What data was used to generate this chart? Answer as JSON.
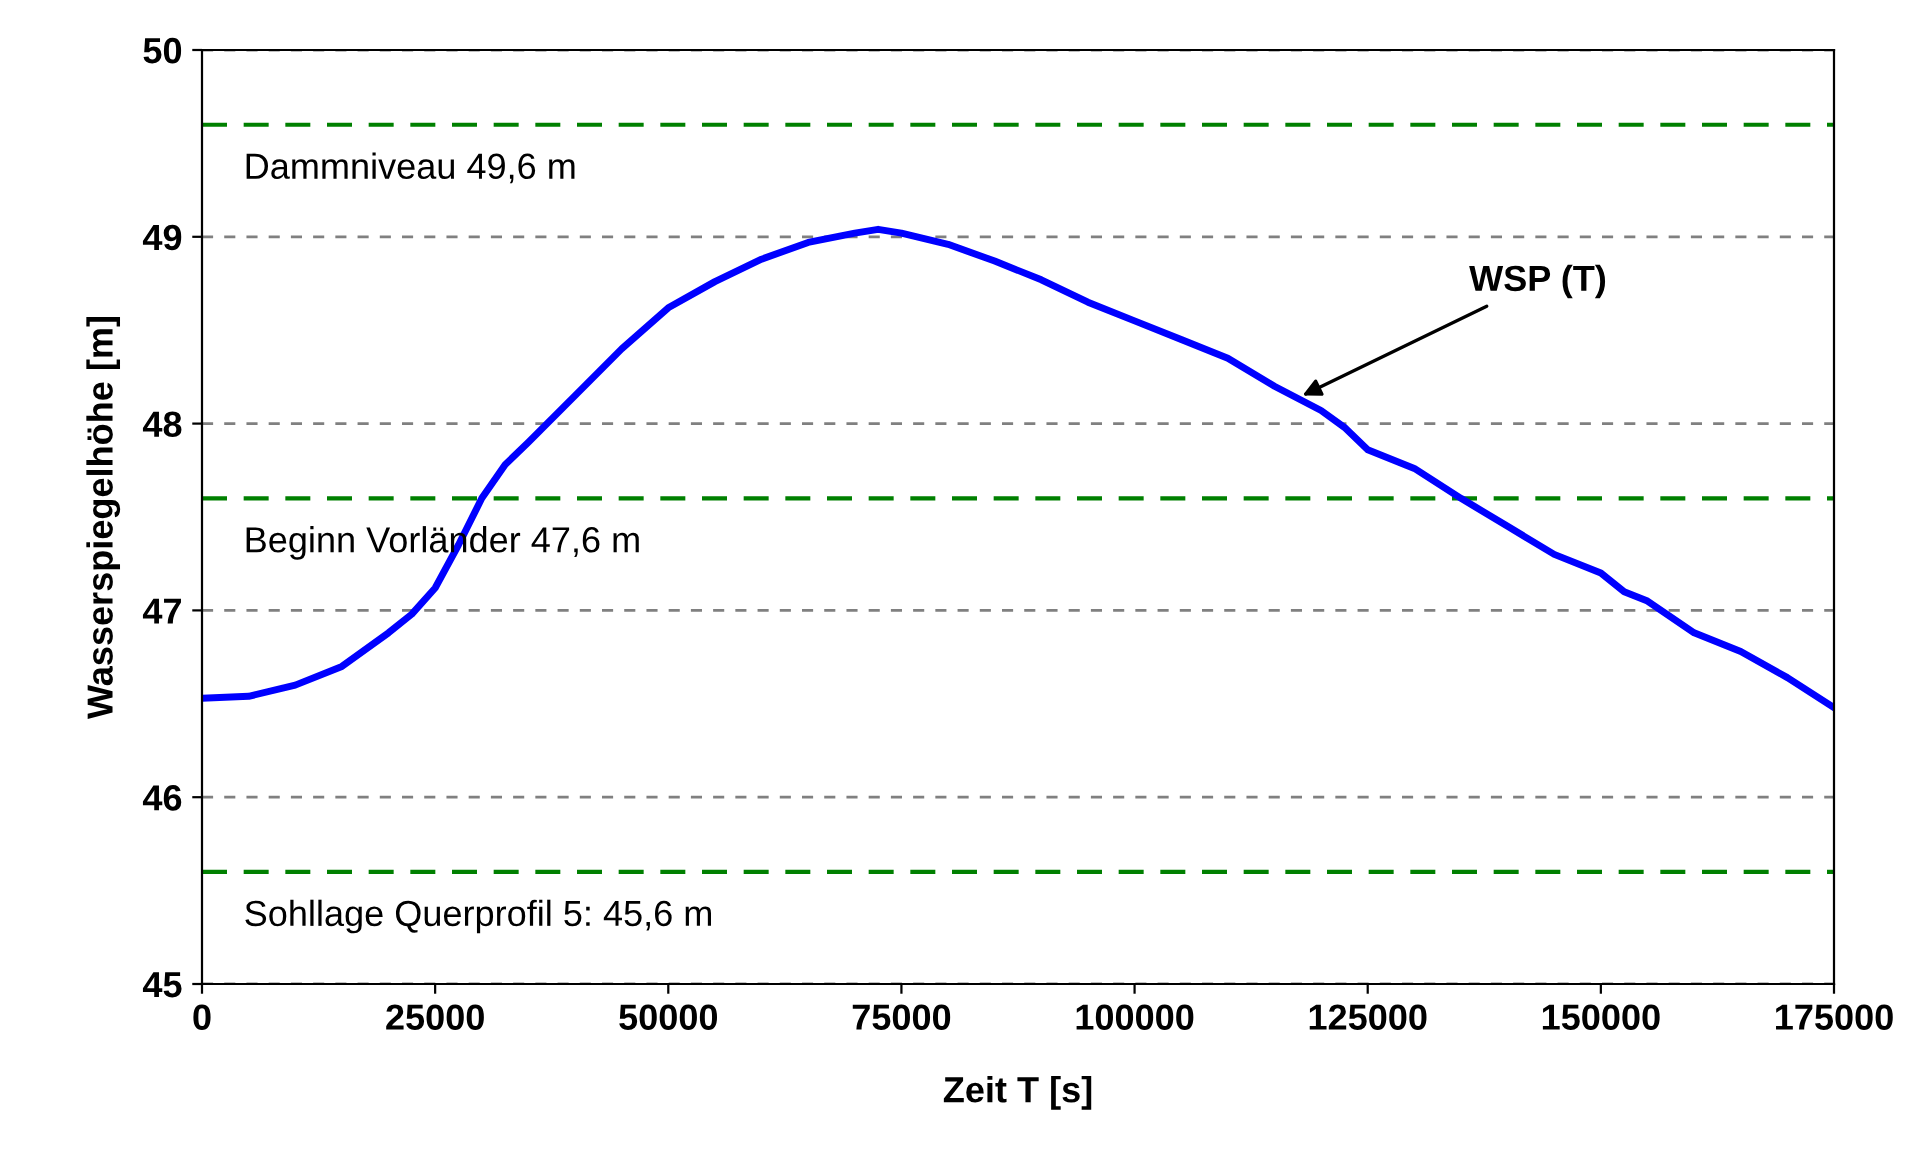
{
  "chart_data": {
    "type": "line",
    "xlabel": "Zeit T [s]",
    "ylabel": "Wasserspiegelhöhe [m]",
    "x": [
      0,
      5000,
      10000,
      15000,
      20000,
      22500,
      25000,
      27500,
      30000,
      32500,
      35000,
      40000,
      45000,
      50000,
      55000,
      60000,
      65000,
      70000,
      72500,
      75000,
      80000,
      85000,
      90000,
      95000,
      100000,
      105000,
      110000,
      115000,
      120000,
      122500,
      125000,
      130000,
      135000,
      140000,
      145000,
      150000,
      152500,
      155000,
      160000,
      165000,
      170000,
      175000
    ],
    "series": [
      {
        "color": "#0000ff",
        "values": [
          46.53,
          46.54,
          46.6,
          46.7,
          46.88,
          46.98,
          47.12,
          47.35,
          47.6,
          47.78,
          47.9,
          48.15,
          48.4,
          48.62,
          48.76,
          48.88,
          48.97,
          49.02,
          49.04,
          49.02,
          48.96,
          48.87,
          48.77,
          48.65,
          48.55,
          48.45,
          48.35,
          48.2,
          48.07,
          47.98,
          47.86,
          47.76,
          47.6,
          47.45,
          47.3,
          47.2,
          47.1,
          47.05,
          46.88,
          46.78,
          46.64,
          46.48
        ]
      }
    ],
    "xlim": [
      0,
      175000
    ],
    "xticks": [
      0,
      25000,
      50000,
      75000,
      100000,
      125000,
      150000,
      175000
    ],
    "ylim": [
      45,
      50
    ],
    "yticks": [
      45,
      46,
      47,
      48,
      49,
      50
    ],
    "grid": "y",
    "legend": false,
    "marker": "none",
    "line_style": "solid",
    "ref_lines": [
      {
        "axis": "y",
        "value": 49.6,
        "label": "Dammniveau 49,6 m",
        "color": "#008000",
        "line_style": "dashed"
      },
      {
        "axis": "y",
        "value": 47.6,
        "label": "Beginn Vorländer 47,6 m",
        "color": "#008000",
        "line_style": "dashed"
      },
      {
        "axis": "y",
        "value": 45.6,
        "label": "Sohllage Querprofil 5: 45,6 m",
        "color": "#008000",
        "line_style": "dashed"
      }
    ],
    "annotations": [
      {
        "text": "WSP (T)",
        "x": 118000,
        "y": 48.15
      }
    ]
  }
}
